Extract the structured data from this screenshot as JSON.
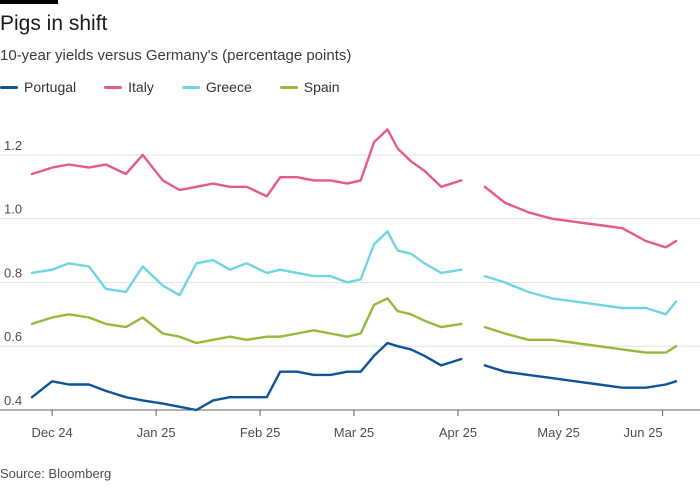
{
  "header": {
    "title": "Pigs in shift",
    "subtitle": "10-year yields versus Germany's (percentage points)"
  },
  "footer": {
    "source": "Source: Bloomberg"
  },
  "chart_data": {
    "type": "line",
    "title": "Pigs in shift",
    "subtitle": "10-year yields versus Germany's (percentage points)",
    "xlabel": "",
    "ylabel": "",
    "ylim": [
      0.4,
      1.3
    ],
    "y_ticks": [
      0.4,
      0.6,
      0.8,
      1.0,
      1.2
    ],
    "y_tick_labels": [
      "0.4",
      "0.6",
      "0.8",
      "1.0",
      "1.2"
    ],
    "x_ticks": [
      "Dec 24",
      "Jan 25",
      "Feb 25",
      "Mar 25",
      "Apr 25",
      "May 25",
      "Jun 25"
    ],
    "grid": "horizontal",
    "legend_position": "top-left",
    "gaps": [
      "between Apr 25 and May 25"
    ],
    "series": [
      {
        "name": "Portugal",
        "color": "#0f5499",
        "points": [
          [
            "Nov 25",
            0.44
          ],
          [
            "Dec 1",
            0.49
          ],
          [
            "Dec 6",
            0.48
          ],
          [
            "Dec 12",
            0.48
          ],
          [
            "Dec 17",
            0.46
          ],
          [
            "Dec 23",
            0.44
          ],
          [
            "Dec 28",
            0.43
          ],
          [
            "Jan 3",
            0.42
          ],
          [
            "Jan 8",
            0.41
          ],
          [
            "Jan 13",
            0.4
          ],
          [
            "Jan 18",
            0.43
          ],
          [
            "Jan 23",
            0.44
          ],
          [
            "Jan 28",
            0.44
          ],
          [
            "Feb 3",
            0.44
          ],
          [
            "Feb 7",
            0.52
          ],
          [
            "Feb 12",
            0.52
          ],
          [
            "Feb 17",
            0.51
          ],
          [
            "Feb 22",
            0.51
          ],
          [
            "Feb 27",
            0.52
          ],
          [
            "Mar 3",
            0.52
          ],
          [
            "Mar 7",
            0.57
          ],
          [
            "Mar 11",
            0.61
          ],
          [
            "Mar 14",
            0.6
          ],
          [
            "Mar 18",
            0.59
          ],
          [
            "Mar 22",
            0.57
          ],
          [
            "Mar 27",
            0.54
          ],
          [
            "Apr 2",
            0.56
          ],
          [
            "Apr 9",
            0.54
          ],
          [
            "Apr 15",
            0.52
          ],
          [
            "Apr 22",
            0.51
          ],
          [
            "Apr 29",
            0.5
          ],
          [
            "May 6",
            0.49
          ],
          [
            "May 13",
            0.48
          ],
          [
            "May 20",
            0.47
          ],
          [
            "May 27",
            0.47
          ],
          [
            "Jun 2",
            0.48
          ],
          [
            "Jun 5",
            0.49
          ]
        ]
      },
      {
        "name": "Italy",
        "color": "#e7598e",
        "points": [
          [
            "Nov 25",
            1.14
          ],
          [
            "Dec 1",
            1.16
          ],
          [
            "Dec 6",
            1.17
          ],
          [
            "Dec 12",
            1.16
          ],
          [
            "Dec 17",
            1.17
          ],
          [
            "Dec 23",
            1.14
          ],
          [
            "Dec 28",
            1.2
          ],
          [
            "Jan 3",
            1.12
          ],
          [
            "Jan 8",
            1.09
          ],
          [
            "Jan 13",
            1.1
          ],
          [
            "Jan 18",
            1.11
          ],
          [
            "Jan 23",
            1.1
          ],
          [
            "Jan 28",
            1.1
          ],
          [
            "Feb 3",
            1.07
          ],
          [
            "Feb 7",
            1.13
          ],
          [
            "Feb 12",
            1.13
          ],
          [
            "Feb 17",
            1.12
          ],
          [
            "Feb 22",
            1.12
          ],
          [
            "Feb 27",
            1.11
          ],
          [
            "Mar 3",
            1.12
          ],
          [
            "Mar 7",
            1.24
          ],
          [
            "Mar 11",
            1.28
          ],
          [
            "Mar 14",
            1.22
          ],
          [
            "Mar 18",
            1.18
          ],
          [
            "Mar 22",
            1.15
          ],
          [
            "Mar 27",
            1.1
          ],
          [
            "Apr 2",
            1.12
          ],
          [
            "Apr 9",
            1.1
          ],
          [
            "Apr 15",
            1.05
          ],
          [
            "Apr 22",
            1.02
          ],
          [
            "Apr 29",
            1.0
          ],
          [
            "May 6",
            0.99
          ],
          [
            "May 13",
            0.98
          ],
          [
            "May 20",
            0.97
          ],
          [
            "May 27",
            0.93
          ],
          [
            "Jun 2",
            0.91
          ],
          [
            "Jun 5",
            0.93
          ]
        ]
      },
      {
        "name": "Greece",
        "color": "#6ed5e3",
        "points": [
          [
            "Nov 25",
            0.83
          ],
          [
            "Dec 1",
            0.84
          ],
          [
            "Dec 6",
            0.86
          ],
          [
            "Dec 12",
            0.85
          ],
          [
            "Dec 17",
            0.78
          ],
          [
            "Dec 23",
            0.77
          ],
          [
            "Dec 28",
            0.85
          ],
          [
            "Jan 3",
            0.79
          ],
          [
            "Jan 8",
            0.76
          ],
          [
            "Jan 13",
            0.86
          ],
          [
            "Jan 18",
            0.87
          ],
          [
            "Jan 23",
            0.84
          ],
          [
            "Jan 28",
            0.86
          ],
          [
            "Feb 3",
            0.83
          ],
          [
            "Feb 7",
            0.84
          ],
          [
            "Feb 12",
            0.83
          ],
          [
            "Feb 17",
            0.82
          ],
          [
            "Feb 22",
            0.82
          ],
          [
            "Feb 27",
            0.8
          ],
          [
            "Mar 3",
            0.81
          ],
          [
            "Mar 7",
            0.92
          ],
          [
            "Mar 11",
            0.96
          ],
          [
            "Mar 14",
            0.9
          ],
          [
            "Mar 18",
            0.89
          ],
          [
            "Mar 22",
            0.86
          ],
          [
            "Mar 27",
            0.83
          ],
          [
            "Apr 2",
            0.84
          ],
          [
            "Apr 9",
            0.82
          ],
          [
            "Apr 15",
            0.8
          ],
          [
            "Apr 22",
            0.77
          ],
          [
            "Apr 29",
            0.75
          ],
          [
            "May 6",
            0.74
          ],
          [
            "May 13",
            0.73
          ],
          [
            "May 20",
            0.72
          ],
          [
            "May 27",
            0.72
          ],
          [
            "Jun 2",
            0.7
          ],
          [
            "Jun 5",
            0.74
          ]
        ]
      },
      {
        "name": "Spain",
        "color": "#96b93b",
        "points": [
          [
            "Nov 25",
            0.67
          ],
          [
            "Dec 1",
            0.69
          ],
          [
            "Dec 6",
            0.7
          ],
          [
            "Dec 12",
            0.69
          ],
          [
            "Dec 17",
            0.67
          ],
          [
            "Dec 23",
            0.66
          ],
          [
            "Dec 28",
            0.69
          ],
          [
            "Jan 3",
            0.64
          ],
          [
            "Jan 8",
            0.63
          ],
          [
            "Jan 13",
            0.61
          ],
          [
            "Jan 18",
            0.62
          ],
          [
            "Jan 23",
            0.63
          ],
          [
            "Jan 28",
            0.62
          ],
          [
            "Feb 3",
            0.63
          ],
          [
            "Feb 7",
            0.63
          ],
          [
            "Feb 12",
            0.64
          ],
          [
            "Feb 17",
            0.65
          ],
          [
            "Feb 22",
            0.64
          ],
          [
            "Feb 27",
            0.63
          ],
          [
            "Mar 3",
            0.64
          ],
          [
            "Mar 7",
            0.73
          ],
          [
            "Mar 11",
            0.75
          ],
          [
            "Mar 14",
            0.71
          ],
          [
            "Mar 18",
            0.7
          ],
          [
            "Mar 22",
            0.68
          ],
          [
            "Mar 27",
            0.66
          ],
          [
            "Apr 2",
            0.67
          ],
          [
            "Apr 9",
            0.66
          ],
          [
            "Apr 15",
            0.64
          ],
          [
            "Apr 22",
            0.62
          ],
          [
            "Apr 29",
            0.62
          ],
          [
            "May 6",
            0.61
          ],
          [
            "May 13",
            0.6
          ],
          [
            "May 20",
            0.59
          ],
          [
            "May 27",
            0.58
          ],
          [
            "Jun 2",
            0.58
          ],
          [
            "Jun 5",
            0.6
          ]
        ]
      }
    ]
  }
}
